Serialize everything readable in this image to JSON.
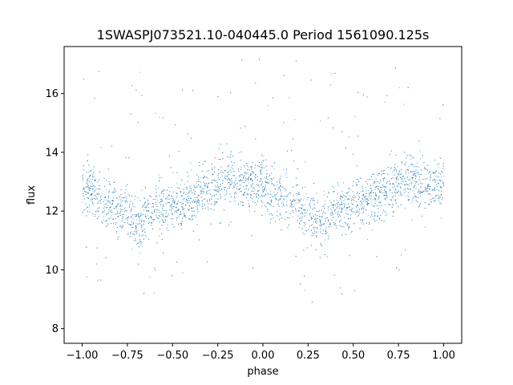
{
  "chart_data": {
    "type": "scatter",
    "title": "1SWASPJ073521.10-040445.0 Period 1561090.125s",
    "xlabel": "phase",
    "ylabel": "flux",
    "xlim": [
      -1.1,
      1.1
    ],
    "ylim": [
      7.5,
      17.6
    ],
    "x_ticks": [
      -1.0,
      -0.75,
      -0.5,
      -0.25,
      0.0,
      0.25,
      0.5,
      0.75,
      1.0
    ],
    "x_tick_labels": [
      "−1.00",
      "−0.75",
      "−0.50",
      "−0.25",
      "0.00",
      "0.25",
      "0.50",
      "0.75",
      "1.00"
    ],
    "y_ticks": [
      8,
      10,
      12,
      14,
      16
    ],
    "y_tick_labels": [
      "8",
      "10",
      "12",
      "14",
      "16"
    ],
    "grid": false,
    "point_color": "#1f77b4",
    "series": [
      {
        "phase": [
          -1.0,
          -0.95,
          -0.9,
          -0.85,
          -0.8,
          -0.75,
          -0.7,
          -0.65,
          -0.6,
          -0.55,
          -0.5,
          -0.45,
          -0.4,
          -0.35,
          -0.3,
          -0.25,
          -0.2,
          -0.15,
          -0.1,
          -0.05,
          0.0,
          0.05,
          0.1,
          0.15,
          0.2,
          0.25,
          0.3,
          0.35,
          0.4,
          0.45,
          0.5,
          0.55,
          0.6,
          0.65,
          0.7,
          0.75,
          0.8,
          0.85,
          0.9,
          0.95,
          1.0
        ],
        "flux_center": [
          12.9,
          12.7,
          12.5,
          12.3,
          12.2,
          11.9,
          11.6,
          11.8,
          12.0,
          12.2,
          12.3,
          12.3,
          12.4,
          12.5,
          12.8,
          13.0,
          13.1,
          13.0,
          12.9,
          12.9,
          12.9,
          12.7,
          12.5,
          12.3,
          12.2,
          11.9,
          11.6,
          11.8,
          12.0,
          12.2,
          12.3,
          12.3,
          12.4,
          12.5,
          12.8,
          13.0,
          13.1,
          13.0,
          12.9,
          12.9,
          12.9
        ]
      }
    ]
  }
}
